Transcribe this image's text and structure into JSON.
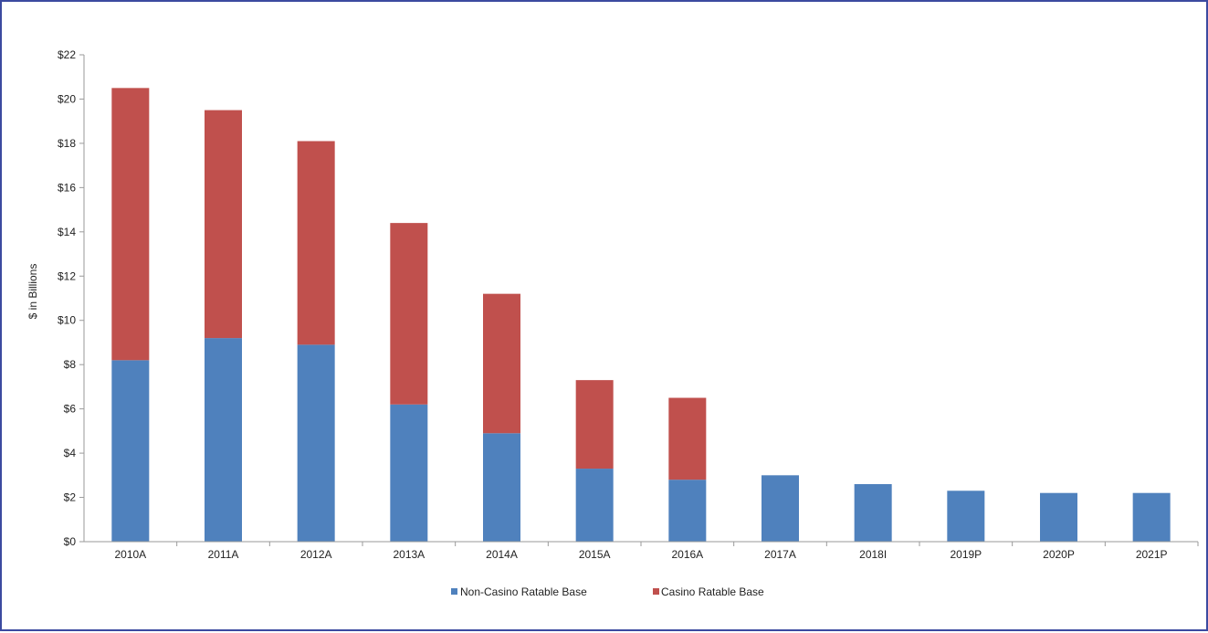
{
  "chart_data": {
    "type": "bar",
    "stacked": true,
    "title": "",
    "xlabel": "",
    "ylabel": "$ in Billions",
    "ylim": [
      0,
      22
    ],
    "yticks": [
      0,
      2,
      4,
      6,
      8,
      10,
      12,
      14,
      16,
      18,
      20,
      22
    ],
    "ytick_labels": [
      "$0",
      "$2",
      "$4",
      "$6",
      "$8",
      "$10",
      "$12",
      "$14",
      "$16",
      "$18",
      "$20",
      "$22"
    ],
    "grid": false,
    "legend": "bottom-center",
    "categories": [
      "2010A",
      "2011A",
      "2012A",
      "2013A",
      "2014A",
      "2015A",
      "2016A",
      "2017A",
      "2018I",
      "2019P",
      "2020P",
      "2021P"
    ],
    "series": [
      {
        "name": "Non-Casino Ratable Base",
        "color": "#4f81bd",
        "values": [
          8.2,
          9.2,
          8.9,
          6.2,
          4.9,
          3.3,
          2.8,
          3.0,
          2.6,
          2.3,
          2.2,
          2.2
        ]
      },
      {
        "name": "Casino Ratable Base",
        "color": "#c0504d",
        "values": [
          12.3,
          10.3,
          9.2,
          8.2,
          6.3,
          4.0,
          3.7,
          0,
          0,
          0,
          0,
          0
        ]
      }
    ]
  }
}
